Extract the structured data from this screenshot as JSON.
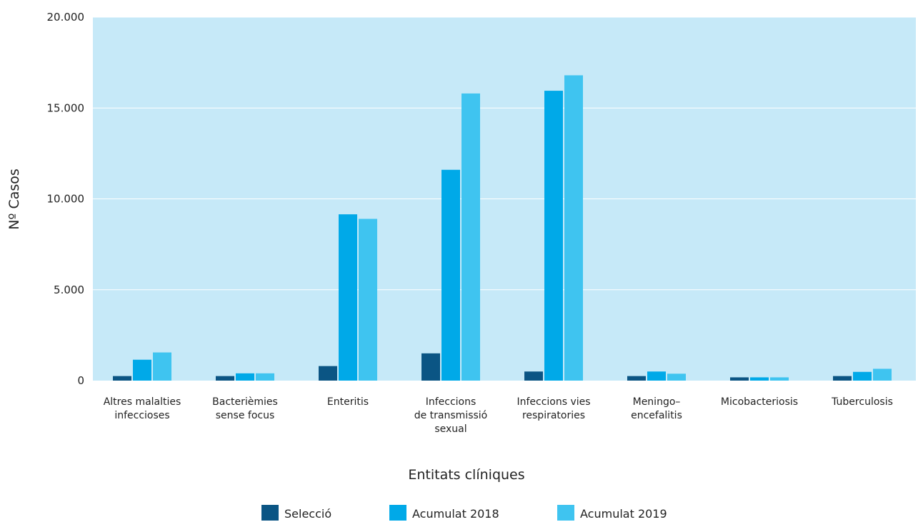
{
  "chart_data": {
    "type": "bar",
    "title": "",
    "xlabel": "Entitats clíniques",
    "ylabel": "Nº Casos",
    "ylim": [
      0,
      20000
    ],
    "yticks": [
      0,
      5000,
      10000,
      15000,
      20000
    ],
    "ytick_labels": [
      "0",
      "5.000",
      "10.000",
      "15.000",
      "20.000"
    ],
    "grid": true,
    "legend_position": "bottom",
    "categories": [
      [
        "Altres malalties",
        "infeccioses"
      ],
      [
        "Bacterièmies",
        "sense focus"
      ],
      [
        "Enteritis"
      ],
      [
        "Infeccions",
        "de transmissió",
        "sexual"
      ],
      [
        "Infeccions vies",
        "respiratories"
      ],
      [
        "Meningo–",
        "encefalitis"
      ],
      [
        "Micobacteriosis"
      ],
      [
        "Tuberculosis"
      ]
    ],
    "series": [
      {
        "name": "Selecció",
        "color": "#0b5584",
        "values": [
          250,
          250,
          800,
          1500,
          500,
          250,
          180,
          250
        ]
      },
      {
        "name": "Acumulat 2018",
        "color": "#00a9e8",
        "values": [
          1150,
          400,
          9150,
          11600,
          15950,
          500,
          180,
          480
        ]
      },
      {
        "name": "Acumulat 2019",
        "color": "#3fc4f0",
        "values": [
          1550,
          400,
          8900,
          15800,
          16800,
          380,
          180,
          650
        ]
      }
    ],
    "plot_background": "#c6e9f8",
    "gridline_color": "#ffffff"
  }
}
